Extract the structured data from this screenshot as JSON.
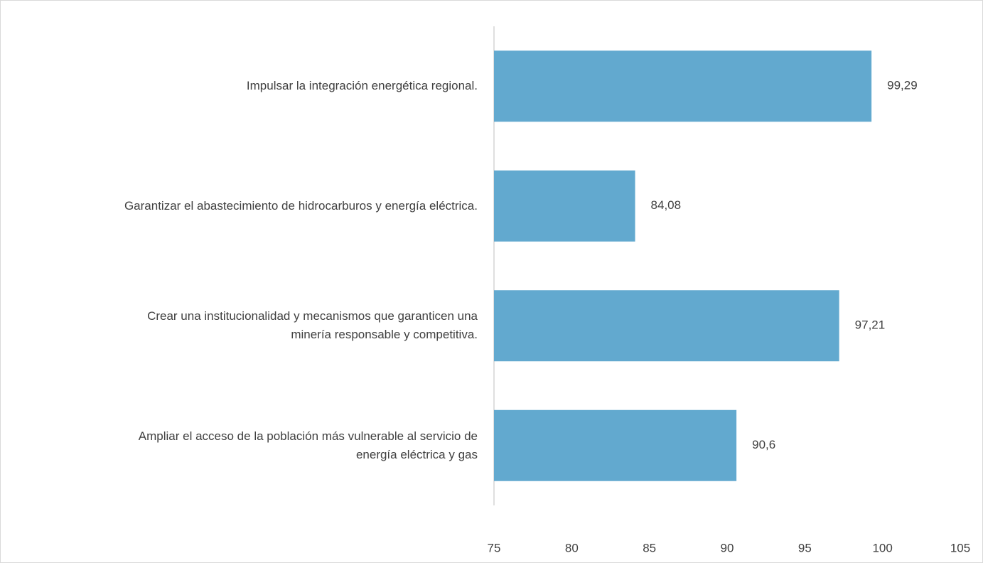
{
  "chart_data": {
    "type": "bar",
    "orientation": "horizontal",
    "categories": [
      "Impulsar la integración energética regional.",
      "Garantizar el abastecimiento de hidrocarburos y energía eléctrica.",
      "Crear una institucionalidad y mecanismos que garanticen una\nminería responsable y competitiva.",
      "Ampliar el acceso de la población más vulnerable al servicio de\nenergía eléctrica y gas"
    ],
    "values": [
      99.29,
      84.08,
      97.21,
      90.6
    ],
    "value_labels": [
      "99,29",
      "84,08",
      "97,21",
      "90,6"
    ],
    "color": "#62a9cf",
    "xlim": [
      75,
      105
    ],
    "xticks": [
      75,
      80,
      85,
      90,
      95,
      100,
      105
    ],
    "grid": false
  }
}
